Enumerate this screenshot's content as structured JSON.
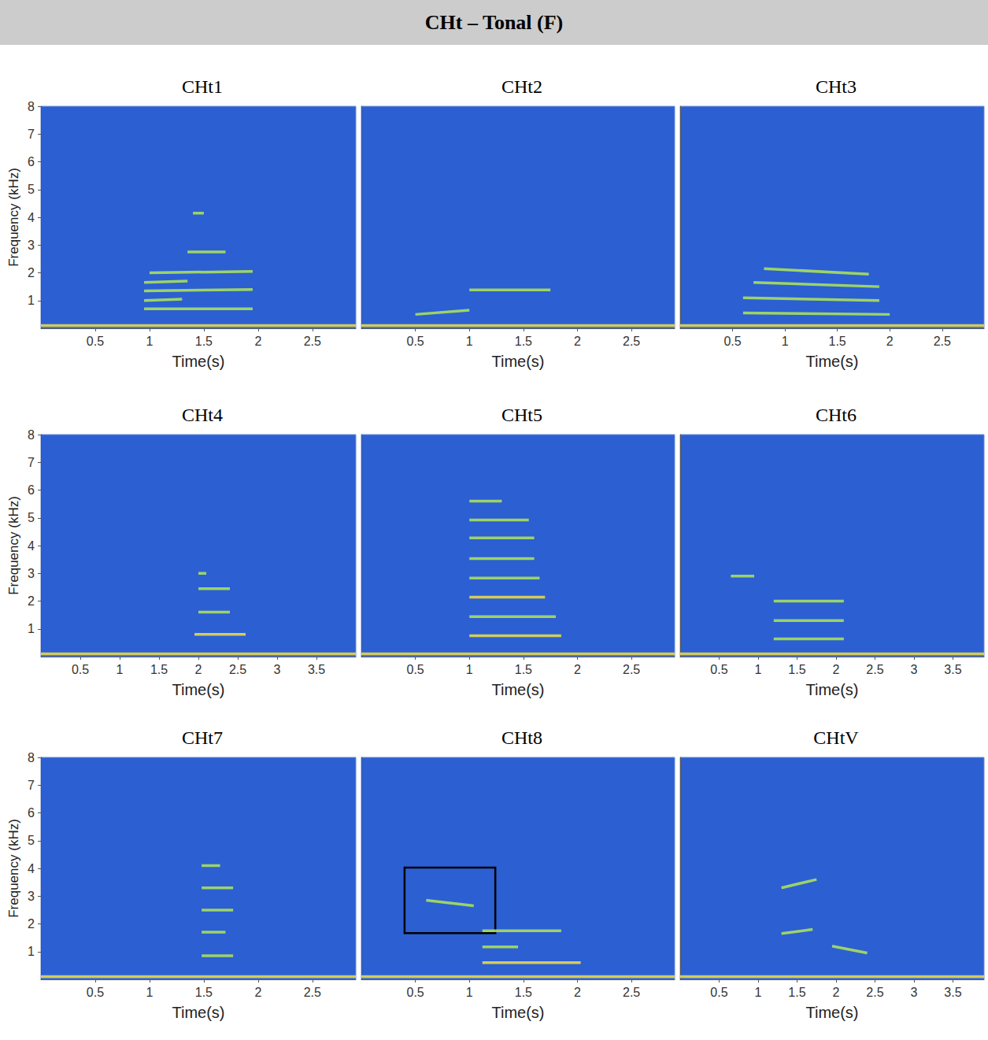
{
  "title": "CHt – Tonal (F)",
  "chart_data": [
    {
      "type": "spectrogram",
      "title": "CHt1",
      "xlabel": "Time(s)",
      "ylabel": "Frequency (kHz)",
      "xlim": [
        0,
        2.9
      ],
      "ylim": [
        0,
        8
      ],
      "xticks": [
        0.5,
        1,
        1.5,
        2,
        2.5
      ],
      "yticks": [
        1,
        2,
        3,
        4,
        5,
        6,
        7,
        8
      ],
      "color": "#a8e05c",
      "series": [
        {
          "x": [
            0,
            2.9
          ],
          "y": [
            0.1,
            0.1
          ],
          "color": "#e6d84a"
        },
        {
          "x": [
            0.95,
            1.95
          ],
          "y": [
            0.7,
            0.7
          ]
        },
        {
          "x": [
            0.95,
            1.3
          ],
          "y": [
            1.0,
            1.05
          ]
        },
        {
          "x": [
            0.95,
            1.95
          ],
          "y": [
            1.35,
            1.4
          ]
        },
        {
          "x": [
            0.95,
            1.35
          ],
          "y": [
            1.65,
            1.7
          ]
        },
        {
          "x": [
            1.0,
            1.95
          ],
          "y": [
            2.0,
            2.05
          ]
        },
        {
          "x": [
            1.35,
            1.7
          ],
          "y": [
            2.75,
            2.75
          ]
        },
        {
          "x": [
            1.4,
            1.5
          ],
          "y": [
            4.15,
            4.15
          ]
        }
      ]
    },
    {
      "type": "spectrogram",
      "title": "CHt2",
      "xlabel": "Time(s)",
      "tick_labels": "x",
      "xlim": [
        0,
        2.9
      ],
      "ylim": [
        0,
        8
      ],
      "xticks": [
        0.5,
        1,
        1.5,
        2,
        2.5
      ],
      "color": "#a8e05c",
      "series": [
        {
          "x": [
            0,
            2.9
          ],
          "y": [
            0.1,
            0.1
          ],
          "color": "#e6d84a"
        },
        {
          "x": [
            0.5,
            1.0
          ],
          "y": [
            0.5,
            0.65
          ]
        },
        {
          "x": [
            1.0,
            1.75
          ],
          "y": [
            1.38,
            1.38
          ]
        }
      ]
    },
    {
      "type": "spectrogram",
      "title": "CHt3",
      "xlabel": "Time(s)",
      "tick_labels": "x",
      "xlim": [
        0,
        2.9
      ],
      "ylim": [
        0,
        8
      ],
      "xticks": [
        0.5,
        1,
        1.5,
        2,
        2.5
      ],
      "color": "#a8e05c",
      "series": [
        {
          "x": [
            0,
            2.9
          ],
          "y": [
            0.1,
            0.1
          ],
          "color": "#e6d84a"
        },
        {
          "x": [
            0.6,
            2.0
          ],
          "y": [
            0.55,
            0.5
          ]
        },
        {
          "x": [
            0.6,
            1.9
          ],
          "y": [
            1.1,
            1.0
          ]
        },
        {
          "x": [
            0.7,
            1.9
          ],
          "y": [
            1.65,
            1.5
          ]
        },
        {
          "x": [
            0.8,
            1.8
          ],
          "y": [
            2.15,
            1.95
          ]
        }
      ]
    },
    {
      "type": "spectrogram",
      "title": "CHt4",
      "xlabel": "Time(s)",
      "ylabel": "Frequency (kHz)",
      "xlim": [
        0,
        4
      ],
      "ylim": [
        0,
        8
      ],
      "xticks": [
        0.5,
        1,
        1.5,
        2,
        2.5,
        3,
        3.5
      ],
      "yticks": [
        1,
        2,
        3,
        4,
        5,
        6,
        7,
        8
      ],
      "color": "#a8e05c",
      "series": [
        {
          "x": [
            0,
            4
          ],
          "y": [
            0.1,
            0.1
          ],
          "color": "#e6d84a"
        },
        {
          "x": [
            1.95,
            2.6
          ],
          "y": [
            0.8,
            0.8
          ],
          "color": "#e6d84a"
        },
        {
          "x": [
            2.0,
            2.4
          ],
          "y": [
            1.6,
            1.6
          ]
        },
        {
          "x": [
            2.0,
            2.4
          ],
          "y": [
            2.45,
            2.45
          ]
        },
        {
          "x": [
            2.0,
            2.1
          ],
          "y": [
            3.0,
            3.0
          ]
        }
      ]
    },
    {
      "type": "spectrogram",
      "title": "CHt5",
      "xlabel": "Time(s)",
      "tick_labels": "x",
      "xlim": [
        0,
        2.9
      ],
      "ylim": [
        0,
        8
      ],
      "xticks": [
        0.5,
        1,
        1.5,
        2,
        2.5
      ],
      "color": "#a8e05c",
      "series": [
        {
          "x": [
            0,
            2.9
          ],
          "y": [
            0.1,
            0.1
          ],
          "color": "#e6d84a"
        },
        {
          "x": [
            1.0,
            1.85
          ],
          "y": [
            0.75,
            0.75
          ],
          "color": "#e6d84a"
        },
        {
          "x": [
            1.0,
            1.8
          ],
          "y": [
            1.44,
            1.44
          ]
        },
        {
          "x": [
            1.0,
            1.7
          ],
          "y": [
            2.14,
            2.14
          ],
          "color": "#e6d84a"
        },
        {
          "x": [
            1.0,
            1.65
          ],
          "y": [
            2.83,
            2.83
          ]
        },
        {
          "x": [
            1.0,
            1.6
          ],
          "y": [
            3.53,
            3.53
          ]
        },
        {
          "x": [
            1.0,
            1.6
          ],
          "y": [
            4.28,
            4.28
          ]
        },
        {
          "x": [
            1.0,
            1.55
          ],
          "y": [
            4.92,
            4.92
          ]
        },
        {
          "x": [
            1.0,
            1.3
          ],
          "y": [
            5.6,
            5.6
          ]
        }
      ]
    },
    {
      "type": "spectrogram",
      "title": "CHt6",
      "xlabel": "Time(s)",
      "tick_labels": "x",
      "xlim": [
        0,
        3.9
      ],
      "ylim": [
        0,
        8
      ],
      "xticks": [
        0.5,
        1,
        1.5,
        2,
        2.5,
        3,
        3.5
      ],
      "color": "#a8e05c",
      "series": [
        {
          "x": [
            0,
            3.9
          ],
          "y": [
            0.1,
            0.1
          ],
          "color": "#e6d84a"
        },
        {
          "x": [
            0.65,
            0.95
          ],
          "y": [
            2.9,
            2.9
          ]
        },
        {
          "x": [
            1.2,
            2.1
          ],
          "y": [
            0.64,
            0.64
          ]
        },
        {
          "x": [
            1.2,
            2.1
          ],
          "y": [
            1.3,
            1.3
          ]
        },
        {
          "x": [
            1.2,
            2.1
          ],
          "y": [
            2.0,
            2.0
          ]
        }
      ]
    },
    {
      "type": "spectrogram",
      "title": "CHt7",
      "xlabel": "Time(s)",
      "ylabel": "Frequency (kHz)",
      "xlim": [
        0,
        2.9
      ],
      "ylim": [
        0,
        8
      ],
      "xticks": [
        0.5,
        1,
        1.5,
        2,
        2.5
      ],
      "yticks": [
        1,
        2,
        3,
        4,
        5,
        6,
        7,
        8
      ],
      "color": "#a8e05c",
      "series": [
        {
          "x": [
            0,
            2.9
          ],
          "y": [
            0.1,
            0.1
          ],
          "color": "#e6d84a"
        },
        {
          "x": [
            1.48,
            1.77
          ],
          "y": [
            0.85,
            0.85
          ]
        },
        {
          "x": [
            1.48,
            1.7
          ],
          "y": [
            1.7,
            1.7
          ]
        },
        {
          "x": [
            1.48,
            1.77
          ],
          "y": [
            2.5,
            2.5
          ]
        },
        {
          "x": [
            1.48,
            1.77
          ],
          "y": [
            3.3,
            3.3
          ]
        },
        {
          "x": [
            1.48,
            1.65
          ],
          "y": [
            4.1,
            4.1
          ]
        }
      ]
    },
    {
      "type": "spectrogram",
      "title": "CHt8",
      "xlabel": "Time(s)",
      "tick_labels": "x",
      "xlim": [
        0,
        2.9
      ],
      "ylim": [
        0,
        8
      ],
      "xticks": [
        0.5,
        1,
        1.5,
        2,
        2.5
      ],
      "color": "#a8e05c",
      "box": {
        "x": [
          0.4,
          1.24
        ],
        "y": [
          1.67,
          4.03
        ]
      },
      "series": [
        {
          "x": [
            0,
            2.9
          ],
          "y": [
            0.1,
            0.1
          ],
          "color": "#e6d84a"
        },
        {
          "x": [
            0.6,
            1.04
          ],
          "y": [
            2.85,
            2.65
          ]
        },
        {
          "x": [
            1.12,
            2.03
          ],
          "y": [
            0.6,
            0.6
          ],
          "color": "#e6d84a"
        },
        {
          "x": [
            1.12,
            1.45
          ],
          "y": [
            1.17,
            1.17
          ]
        },
        {
          "x": [
            1.12,
            1.85
          ],
          "y": [
            1.75,
            1.75
          ]
        }
      ]
    },
    {
      "type": "spectrogram",
      "title": "CHtV",
      "xlabel": "Time(s)",
      "tick_labels": "x",
      "xlim": [
        0,
        3.9
      ],
      "ylim": [
        0,
        8
      ],
      "xticks": [
        0.5,
        1,
        1.5,
        2,
        2.5,
        3,
        3.5
      ],
      "color": "#a8e05c",
      "series": [
        {
          "x": [
            0,
            3.9
          ],
          "y": [
            0.1,
            0.1
          ],
          "color": "#e6d84a"
        },
        {
          "x": [
            1.3,
            1.7
          ],
          "y": [
            1.65,
            1.8
          ]
        },
        {
          "x": [
            1.95,
            2.4
          ],
          "y": [
            1.2,
            0.95
          ]
        },
        {
          "x": [
            1.3,
            1.75
          ],
          "y": [
            3.3,
            3.6
          ]
        }
      ]
    }
  ]
}
